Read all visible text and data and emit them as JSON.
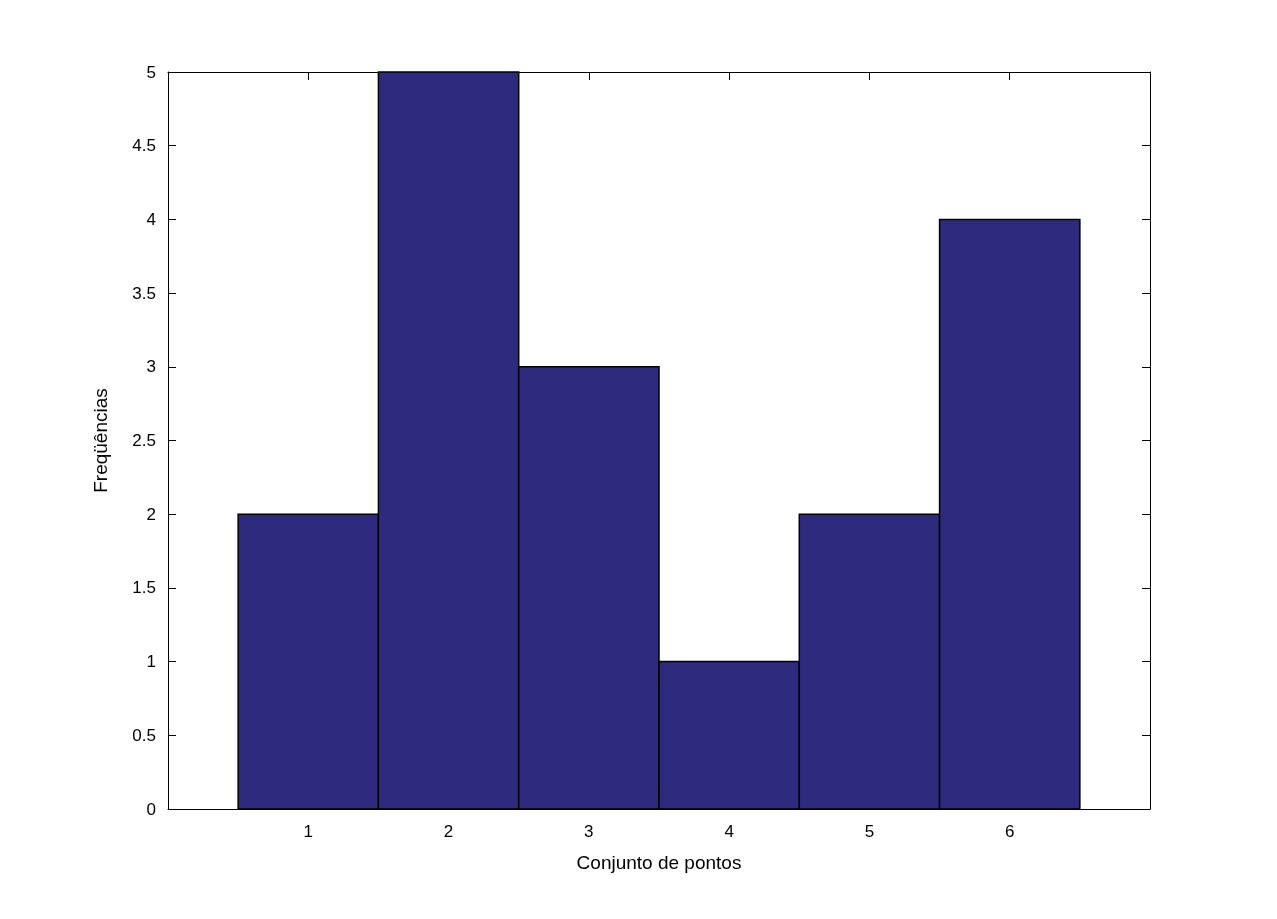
{
  "chart_data": {
    "type": "histogram",
    "xlabel": "Conjunto de pontos",
    "ylabel": "Freqüências",
    "bins": [
      0.5,
      1.5,
      2.5,
      3.5,
      4.5,
      5.5,
      6.5
    ],
    "values": [
      2,
      5,
      3,
      1,
      2,
      4
    ],
    "color": "#2e2a7e",
    "xlim": [
      0,
      7
    ],
    "xticks": [
      1,
      2,
      3,
      4,
      5,
      6
    ],
    "ylim": [
      0,
      5
    ],
    "yticks": [
      0,
      0.5,
      1,
      1.5,
      2,
      2.5,
      3,
      3.5,
      4,
      4.5,
      5
    ],
    "grid": false
  }
}
